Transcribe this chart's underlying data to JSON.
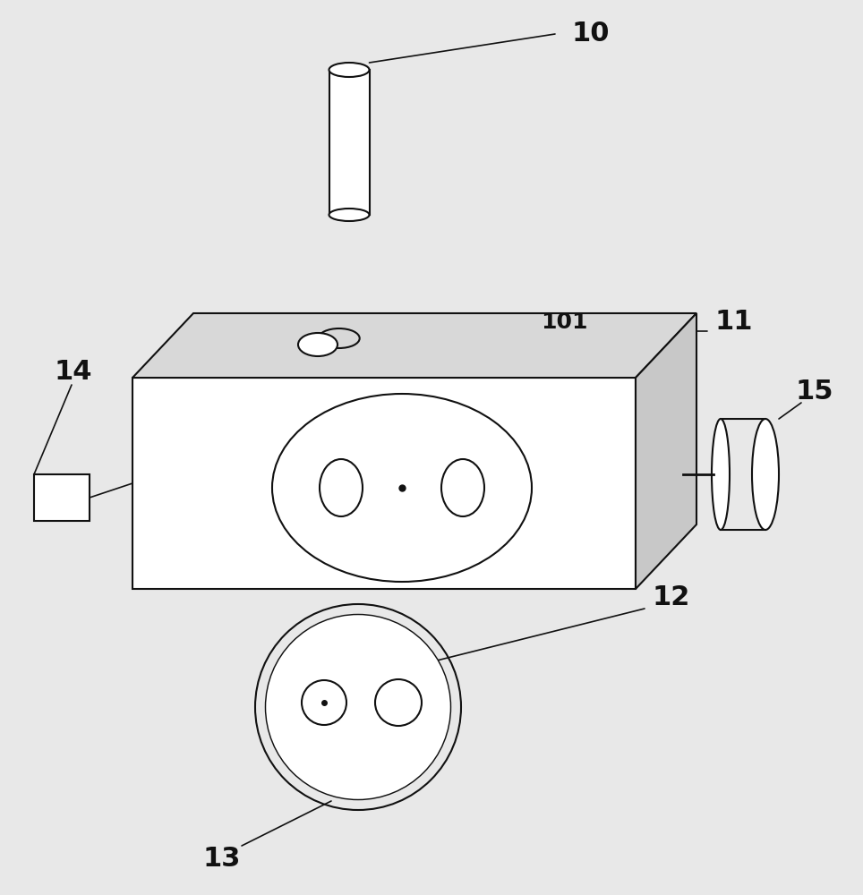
{
  "bg_color": "#e8e8e8",
  "line_color": "#111111",
  "lw": 1.5,
  "figsize": [
    9.64,
    10.0
  ],
  "dpi": 100
}
